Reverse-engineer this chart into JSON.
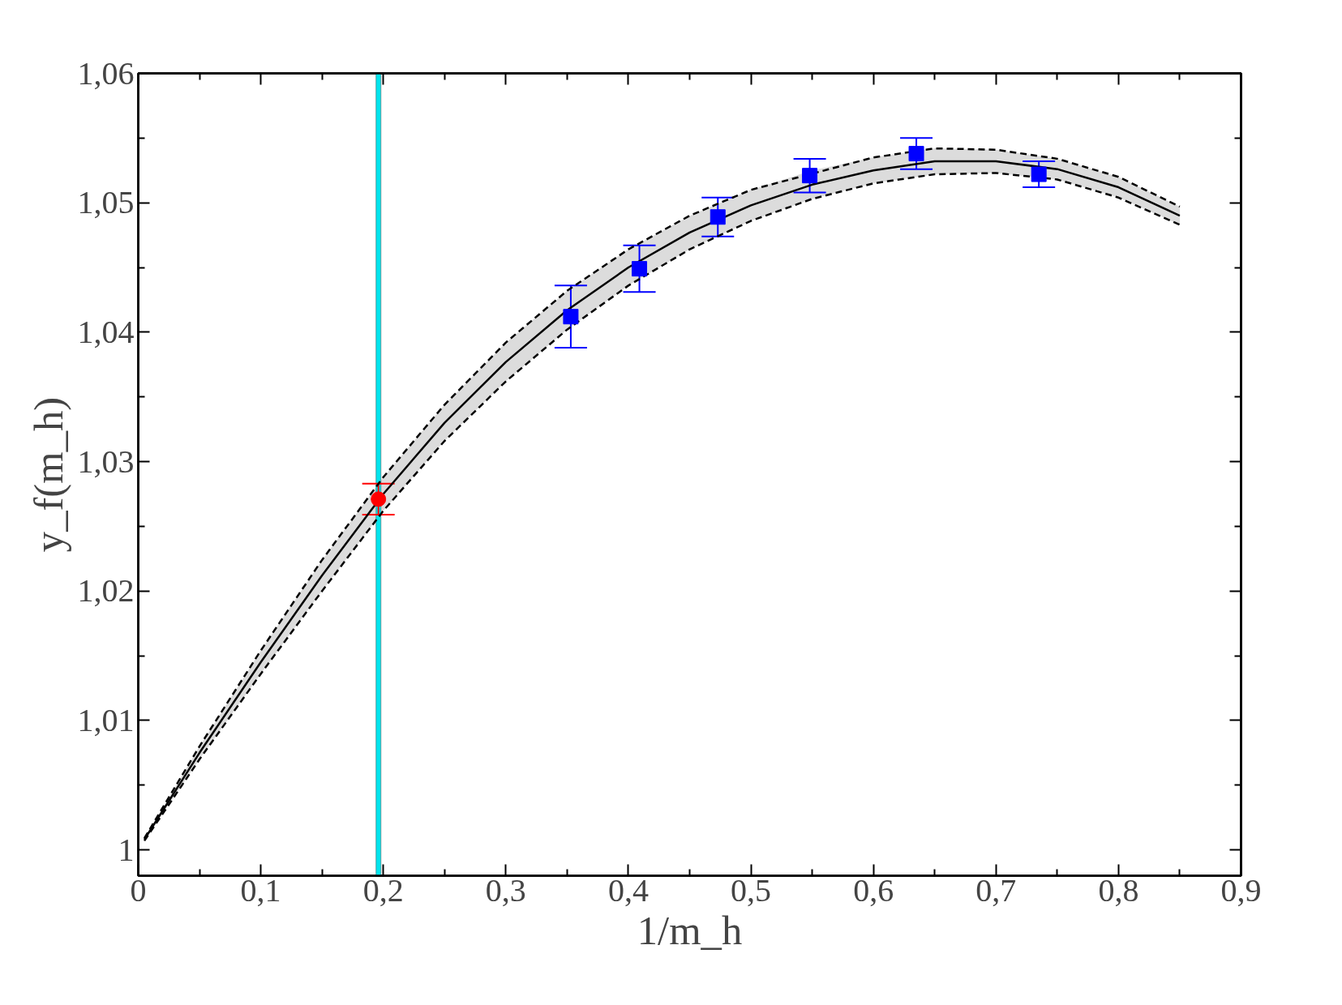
{
  "chart_data": {
    "type": "scatter",
    "xlabel": "1/m_h",
    "ylabel": "y_f(m_h)",
    "xlim": [
      0,
      0.9
    ],
    "ylim": [
      0.998,
      1.06
    ],
    "xticks": [
      0,
      {
        "value": 0.05,
        "label": null
      },
      {
        "value": 0.1,
        "label": "0,1"
      },
      {
        "value": 0.15,
        "label": null
      },
      {
        "value": 0.2,
        "label": "0,2"
      },
      {
        "value": 0.25,
        "label": null
      },
      {
        "value": 0.3,
        "label": "0,3"
      },
      {
        "value": 0.35,
        "label": null
      },
      {
        "value": 0.4,
        "label": "0,4"
      },
      {
        "value": 0.45,
        "label": null
      },
      {
        "value": 0.5,
        "label": "0,5"
      },
      {
        "value": 0.55,
        "label": null
      },
      {
        "value": 0.6,
        "label": "0,6"
      },
      {
        "value": 0.65,
        "label": null
      },
      {
        "value": 0.7,
        "label": "0,7"
      },
      {
        "value": 0.75,
        "label": null
      },
      {
        "value": 0.8,
        "label": "0,8"
      },
      {
        "value": 0.85,
        "label": null
      },
      {
        "value": 0.9,
        "label": "0,9"
      }
    ],
    "yticks": [
      1,
      {
        "value": 1.005,
        "label": null
      },
      {
        "value": 1.01,
        "label": "1,01"
      },
      {
        "value": 1.015,
        "label": null
      },
      {
        "value": 1.02,
        "label": "1,02"
      },
      {
        "value": 1.025,
        "label": null
      },
      {
        "value": 1.03,
        "label": "1,03"
      },
      {
        "value": 1.035,
        "label": null
      },
      {
        "value": 1.04,
        "label": "1,04"
      },
      {
        "value": 1.045,
        "label": null
      },
      {
        "value": 1.05,
        "label": "1,05"
      },
      {
        "value": 1.055,
        "label": null
      },
      {
        "value": 1.06,
        "label": "1,06"
      }
    ],
    "grid": false,
    "bands": [
      {
        "axis": "x",
        "from": 0.194,
        "to": 0.198,
        "color": "#00e5ee"
      }
    ],
    "series": [
      {
        "type": "line",
        "color": "#000000",
        "line_style": "solid",
        "marker": "none",
        "x": [
          0.005,
          0.05,
          0.1,
          0.15,
          0.2,
          0.25,
          0.3,
          0.35,
          0.4,
          0.45,
          0.5,
          0.55,
          0.6,
          0.65,
          0.7,
          0.75,
          0.8,
          0.85
        ],
        "values": [
          1.0008,
          1.0075,
          1.0145,
          1.0212,
          1.0275,
          1.033,
          1.0377,
          1.0417,
          1.045,
          1.0477,
          1.0498,
          1.0514,
          1.0525,
          1.0532,
          1.0532,
          1.0526,
          1.0512,
          1.049
        ],
        "lower": [
          1.0007,
          1.007,
          1.0136,
          1.02,
          1.0262,
          1.0316,
          1.0362,
          1.0402,
          1.0436,
          1.0464,
          1.0486,
          1.0503,
          1.0515,
          1.0522,
          1.0523,
          1.0518,
          1.0504,
          1.0483
        ],
        "upper": [
          1.0009,
          1.008,
          1.0154,
          1.0224,
          1.0288,
          1.0344,
          1.0392,
          1.0432,
          1.0464,
          1.049,
          1.051,
          1.0525,
          1.0535,
          1.0542,
          1.0541,
          1.0534,
          1.052,
          1.0497
        ]
      },
      {
        "type": "line",
        "color": "#000000",
        "line_style": "dashed",
        "marker": "none",
        "x": [
          0.005,
          0.05,
          0.1,
          0.15,
          0.2,
          0.25,
          0.3,
          0.35,
          0.4,
          0.45,
          0.5,
          0.55,
          0.6,
          0.65,
          0.7,
          0.75,
          0.8,
          0.85
        ],
        "values": [
          1.0007,
          1.007,
          1.0136,
          1.02,
          1.0262,
          1.0316,
          1.0362,
          1.0402,
          1.0436,
          1.0464,
          1.0486,
          1.0503,
          1.0515,
          1.0522,
          1.0523,
          1.0518,
          1.0504,
          1.0483
        ]
      },
      {
        "type": "line",
        "color": "#000000",
        "line_style": "dashed",
        "marker": "none",
        "x": [
          0.005,
          0.05,
          0.1,
          0.15,
          0.2,
          0.25,
          0.3,
          0.35,
          0.4,
          0.45,
          0.5,
          0.6,
          0.65,
          0.7,
          0.75,
          0.8,
          0.85
        ],
        "values": [
          1.0009,
          1.008,
          1.0154,
          1.0224,
          1.0288,
          1.0344,
          1.0392,
          1.0432,
          1.0464,
          1.049,
          1.051,
          1.0535,
          1.0542,
          1.0541,
          1.0534,
          1.052,
          1.0497
        ]
      },
      {
        "color": "#0000ff",
        "marker": "square",
        "x": [
          0.353,
          0.409,
          0.473,
          0.548,
          0.635,
          0.735
        ],
        "values": [
          1.0412,
          1.0449,
          1.0489,
          1.0521,
          1.0538,
          1.0522
        ],
        "errors": [
          0.0024,
          0.0018,
          0.0015,
          0.0013,
          0.0012,
          0.001
        ]
      },
      {
        "color": "#ff0000",
        "marker": "circle",
        "x": [
          0.196
        ],
        "values": [
          1.0271
        ],
        "errors": [
          0.0012
        ]
      }
    ]
  }
}
